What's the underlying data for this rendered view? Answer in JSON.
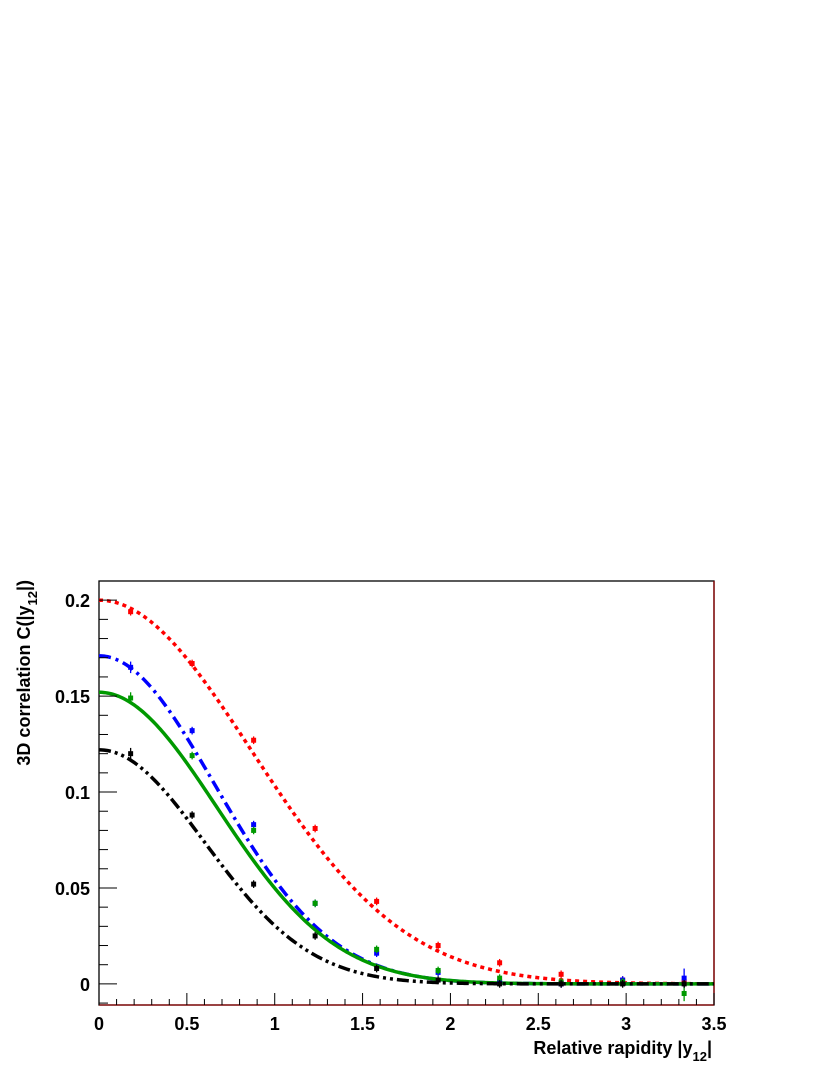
{
  "chart_data": {
    "type": "line",
    "xlabel": "Relative rapidity |y",
    "xlabel_sub": "12",
    "xlabel_tail": "|",
    "ylabel": "3D correlation C(|y",
    "ylabel_sub": "12",
    "ylabel_tail": "|)",
    "xlim": [
      0,
      3.5
    ],
    "ylim": [
      -0.011,
      0.21
    ],
    "grid": false,
    "legend": "none",
    "x_ticks": [
      0,
      0.5,
      1,
      1.5,
      2,
      2.5,
      3,
      3.5
    ],
    "x_tick_labels": [
      "0",
      "0.5",
      "1",
      "1.5",
      "2",
      "2.5",
      "3",
      "3.5"
    ],
    "y_ticks": [
      0,
      0.05,
      0.1,
      0.15,
      0.2
    ],
    "y_tick_labels": [
      "0",
      "0.05",
      "0.1",
      "0.15",
      "0.2"
    ],
    "series": [
      {
        "color": "#ff0000",
        "line_style": "dotted",
        "curve": {
          "a": 0.2,
          "sigma": 0.87
        },
        "points": [
          {
            "x": 0.18,
            "y": 0.194,
            "err": 0.002
          },
          {
            "x": 0.53,
            "y": 0.167,
            "err": 0.002
          },
          {
            "x": 0.88,
            "y": 0.127,
            "err": 0.002
          },
          {
            "x": 1.23,
            "y": 0.081,
            "err": 0.002
          },
          {
            "x": 1.58,
            "y": 0.043,
            "err": 0.002
          },
          {
            "x": 1.93,
            "y": 0.02,
            "err": 0.002
          },
          {
            "x": 2.28,
            "y": 0.011,
            "err": 0.002
          },
          {
            "x": 2.63,
            "y": 0.005,
            "err": 0.002
          },
          {
            "x": 2.98,
            "y": 0.002,
            "err": 0.002
          },
          {
            "x": 3.33,
            "y": 0.001,
            "err": 0.002
          }
        ]
      },
      {
        "color": "#0000ff",
        "line_style": "dash-dot",
        "curve": {
          "a": 0.171,
          "sigma": 0.66
        },
        "points": [
          {
            "x": 0.18,
            "y": 0.165,
            "err": 0.003
          },
          {
            "x": 0.53,
            "y": 0.132,
            "err": 0.002
          },
          {
            "x": 0.88,
            "y": 0.083,
            "err": 0.002
          },
          {
            "x": 1.23,
            "y": 0.042,
            "err": 0.002
          },
          {
            "x": 1.58,
            "y": 0.016,
            "err": 0.002
          },
          {
            "x": 1.93,
            "y": 0.006,
            "err": 0.002
          },
          {
            "x": 2.28,
            "y": 0.001,
            "err": 0.002
          },
          {
            "x": 2.63,
            "y": 0.0,
            "err": 0.002
          },
          {
            "x": 2.98,
            "y": 0.002,
            "err": 0.002
          },
          {
            "x": 3.33,
            "y": 0.003,
            "err": 0.005
          }
        ]
      },
      {
        "color": "#009900",
        "line_style": "solid",
        "curve": {
          "a": 0.152,
          "sigma": 0.67
        },
        "points": [
          {
            "x": 0.18,
            "y": 0.149,
            "err": 0.003
          },
          {
            "x": 0.53,
            "y": 0.119,
            "err": 0.002
          },
          {
            "x": 0.88,
            "y": 0.08,
            "err": 0.002
          },
          {
            "x": 1.23,
            "y": 0.042,
            "err": 0.002
          },
          {
            "x": 1.58,
            "y": 0.018,
            "err": 0.002
          },
          {
            "x": 1.93,
            "y": 0.007,
            "err": 0.002
          },
          {
            "x": 2.28,
            "y": 0.003,
            "err": 0.002
          },
          {
            "x": 2.63,
            "y": 0.001,
            "err": 0.002
          },
          {
            "x": 2.98,
            "y": 0.001,
            "err": 0.002
          },
          {
            "x": 3.33,
            "y": -0.005,
            "err": 0.004
          }
        ]
      },
      {
        "color": "#000000",
        "line_style": "dash-dot-dot",
        "curve": {
          "a": 0.122,
          "sigma": 0.6
        },
        "points": [
          {
            "x": 0.18,
            "y": 0.12,
            "err": 0.003
          },
          {
            "x": 0.53,
            "y": 0.088,
            "err": 0.002
          },
          {
            "x": 0.88,
            "y": 0.052,
            "err": 0.002
          },
          {
            "x": 1.23,
            "y": 0.025,
            "err": 0.002
          },
          {
            "x": 1.58,
            "y": 0.008,
            "err": 0.002
          },
          {
            "x": 1.93,
            "y": 0.002,
            "err": 0.002
          },
          {
            "x": 2.28,
            "y": 0.0,
            "err": 0.002
          },
          {
            "x": 2.63,
            "y": 0.0,
            "err": 0.002
          },
          {
            "x": 2.98,
            "y": 0.0,
            "err": 0.002
          },
          {
            "x": 3.33,
            "y": 0.0,
            "err": 0.002
          }
        ]
      }
    ]
  }
}
